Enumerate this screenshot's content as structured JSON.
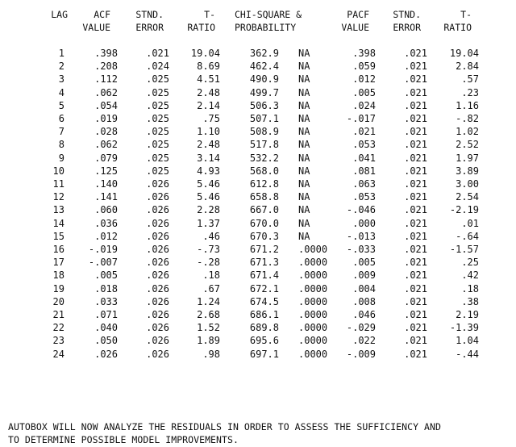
{
  "headers": [
    {
      "line1": "LAG",
      "line2": ""
    },
    {
      "line1": "ACF",
      "line2": "VALUE"
    },
    {
      "line1": "STND.",
      "line2": "ERROR"
    },
    {
      "line1": "T-",
      "line2": "RATIO"
    },
    {
      "line1": "CHI-SQUARE &",
      "line2": "PROBABILITY"
    },
    {
      "line1": "PACF",
      "line2": "VALUE"
    },
    {
      "line1": "STND.",
      "line2": "ERROR"
    },
    {
      "line1": "T-",
      "line2": "RATIO"
    }
  ],
  "rows": [
    {
      "lag": "1",
      "acf": ".398",
      "se": ".021",
      "t": "19.04",
      "chi": "362.9",
      "prob": "NA",
      "pacf": ".398",
      "se2": ".021",
      "t2": "19.04"
    },
    {
      "lag": "2",
      "acf": ".208",
      "se": ".024",
      "t": "8.69",
      "chi": "462.4",
      "prob": "NA",
      "pacf": ".059",
      "se2": ".021",
      "t2": "2.84"
    },
    {
      "lag": "3",
      "acf": ".112",
      "se": ".025",
      "t": "4.51",
      "chi": "490.9",
      "prob": "NA",
      "pacf": ".012",
      "se2": ".021",
      "t2": ".57"
    },
    {
      "lag": "4",
      "acf": ".062",
      "se": ".025",
      "t": "2.48",
      "chi": "499.7",
      "prob": "NA",
      "pacf": ".005",
      "se2": ".021",
      "t2": ".23"
    },
    {
      "lag": "5",
      "acf": ".054",
      "se": ".025",
      "t": "2.14",
      "chi": "506.3",
      "prob": "NA",
      "pacf": ".024",
      "se2": ".021",
      "t2": "1.16"
    },
    {
      "lag": "6",
      "acf": ".019",
      "se": ".025",
      "t": ".75",
      "chi": "507.1",
      "prob": "NA",
      "pacf": "-.017",
      "se2": ".021",
      "t2": "-.82"
    },
    {
      "lag": "7",
      "acf": ".028",
      "se": ".025",
      "t": "1.10",
      "chi": "508.9",
      "prob": "NA",
      "pacf": ".021",
      "se2": ".021",
      "t2": "1.02"
    },
    {
      "lag": "8",
      "acf": ".062",
      "se": ".025",
      "t": "2.48",
      "chi": "517.8",
      "prob": "NA",
      "pacf": ".053",
      "se2": ".021",
      "t2": "2.52"
    },
    {
      "lag": "9",
      "acf": ".079",
      "se": ".025",
      "t": "3.14",
      "chi": "532.2",
      "prob": "NA",
      "pacf": ".041",
      "se2": ".021",
      "t2": "1.97"
    },
    {
      "lag": "10",
      "acf": ".125",
      "se": ".025",
      "t": "4.93",
      "chi": "568.0",
      "prob": "NA",
      "pacf": ".081",
      "se2": ".021",
      "t2": "3.89"
    },
    {
      "lag": "11",
      "acf": ".140",
      "se": ".026",
      "t": "5.46",
      "chi": "612.8",
      "prob": "NA",
      "pacf": ".063",
      "se2": ".021",
      "t2": "3.00"
    },
    {
      "lag": "12",
      "acf": ".141",
      "se": ".026",
      "t": "5.46",
      "chi": "658.8",
      "prob": "NA",
      "pacf": ".053",
      "se2": ".021",
      "t2": "2.54"
    },
    {
      "lag": "13",
      "acf": ".060",
      "se": ".026",
      "t": "2.28",
      "chi": "667.0",
      "prob": "NA",
      "pacf": "-.046",
      "se2": ".021",
      "t2": "-2.19"
    },
    {
      "lag": "14",
      "acf": ".036",
      "se": ".026",
      "t": "1.37",
      "chi": "670.0",
      "prob": "NA",
      "pacf": ".000",
      "se2": ".021",
      "t2": ".01"
    },
    {
      "lag": "15",
      "acf": ".012",
      "se": ".026",
      "t": ".46",
      "chi": "670.3",
      "prob": "NA",
      "pacf": "-.013",
      "se2": ".021",
      "t2": "-.64"
    },
    {
      "lag": "16",
      "acf": "-.019",
      "se": ".026",
      "t": "-.73",
      "chi": "671.2",
      "prob": ".0000",
      "pacf": "-.033",
      "se2": ".021",
      "t2": "-1.57"
    },
    {
      "lag": "17",
      "acf": "-.007",
      "se": ".026",
      "t": "-.28",
      "chi": "671.3",
      "prob": ".0000",
      "pacf": ".005",
      "se2": ".021",
      "t2": ".25"
    },
    {
      "lag": "18",
      "acf": ".005",
      "se": ".026",
      "t": ".18",
      "chi": "671.4",
      "prob": ".0000",
      "pacf": ".009",
      "se2": ".021",
      "t2": ".42"
    },
    {
      "lag": "19",
      "acf": ".018",
      "se": ".026",
      "t": ".67",
      "chi": "672.1",
      "prob": ".0000",
      "pacf": ".004",
      "se2": ".021",
      "t2": ".18"
    },
    {
      "lag": "20",
      "acf": ".033",
      "se": ".026",
      "t": "1.24",
      "chi": "674.5",
      "prob": ".0000",
      "pacf": ".008",
      "se2": ".021",
      "t2": ".38"
    },
    {
      "lag": "21",
      "acf": ".071",
      "se": ".026",
      "t": "2.68",
      "chi": "686.1",
      "prob": ".0000",
      "pacf": ".046",
      "se2": ".021",
      "t2": "2.19"
    },
    {
      "lag": "22",
      "acf": ".040",
      "se": ".026",
      "t": "1.52",
      "chi": "689.8",
      "prob": ".0000",
      "pacf": "-.029",
      "se2": ".021",
      "t2": "-1.39"
    },
    {
      "lag": "23",
      "acf": ".050",
      "se": ".026",
      "t": "1.89",
      "chi": "695.6",
      "prob": ".0000",
      "pacf": ".022",
      "se2": ".021",
      "t2": "1.04"
    },
    {
      "lag": "24",
      "acf": ".026",
      "se": ".026",
      "t": ".98",
      "chi": "697.1",
      "prob": ".0000",
      "pacf": "-.009",
      "se2": ".021",
      "t2": "-.44"
    }
  ],
  "footer": {
    "line1": "AUTOBOX WILL NOW ANALYZE THE RESIDUALS IN ORDER TO ASSESS THE SUFFICIENCY AND",
    "line2": "TO DETERMINE POSSIBLE MODEL IMPROVEMENTS."
  }
}
